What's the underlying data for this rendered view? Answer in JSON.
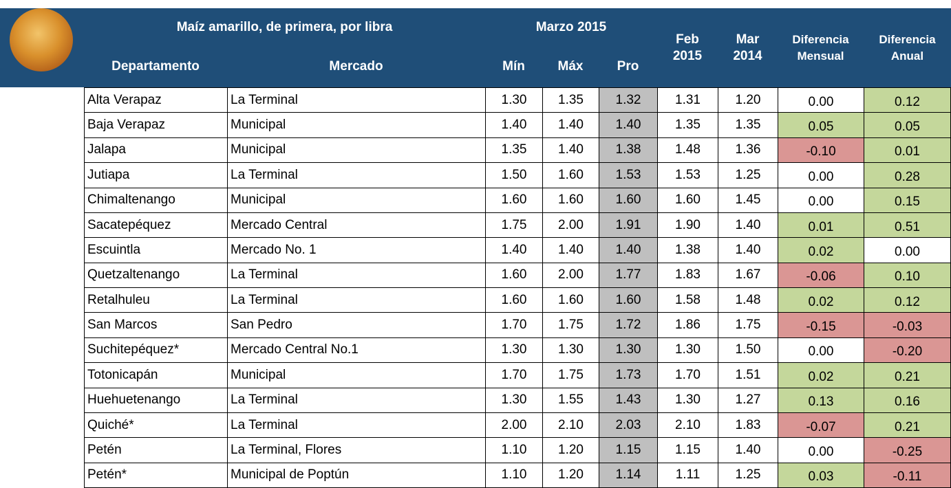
{
  "header": {
    "title": "Maíz amarillo, de primera, por libra",
    "period": "Marzo 2015",
    "columns": [
      "Departamento",
      "Mercado",
      "Mín",
      "Máx",
      "Pro"
    ],
    "feb": [
      "Feb",
      "2015"
    ],
    "mar": [
      "Mar",
      "2014"
    ],
    "dif_mensual": [
      "Diferencia",
      "Mensual"
    ],
    "dif_anual": [
      "Diferencia",
      "Anual"
    ]
  },
  "colors": {
    "header": "#1f4e78",
    "pro": "#bfbfbf",
    "positive": "#c4d79b",
    "negative": "#da9694"
  },
  "table": {
    "rows": [
      [
        "Alta Verapaz",
        "La Terminal",
        "1.30",
        "1.35",
        "1.32",
        "1.31",
        "1.20",
        "0.00",
        "0.12"
      ],
      [
        "Baja Verapaz",
        "Municipal",
        "1.40",
        "1.40",
        "1.40",
        "1.35",
        "1.35",
        "0.05",
        "0.05"
      ],
      [
        "Jalapa",
        "Municipal",
        "1.35",
        "1.40",
        "1.38",
        "1.48",
        "1.36",
        "-0.10",
        "0.01"
      ],
      [
        "Jutiapa",
        "La Terminal",
        "1.50",
        "1.60",
        "1.53",
        "1.53",
        "1.25",
        "0.00",
        "0.28"
      ],
      [
        "Chimaltenango",
        "Municipal",
        "1.60",
        "1.60",
        "1.60",
        "1.60",
        "1.45",
        "0.00",
        "0.15"
      ],
      [
        "Sacatepéquez",
        "Mercado Central",
        "1.75",
        "2.00",
        "1.91",
        "1.90",
        "1.40",
        "0.01",
        "0.51"
      ],
      [
        "Escuintla",
        "Mercado No. 1",
        "1.40",
        "1.40",
        "1.40",
        "1.38",
        "1.40",
        "0.02",
        "0.00"
      ],
      [
        "Quetzaltenango",
        "La Terminal",
        "1.60",
        "2.00",
        "1.77",
        "1.83",
        "1.67",
        "-0.06",
        "0.10"
      ],
      [
        "Retalhuleu",
        "La Terminal",
        "1.60",
        "1.60",
        "1.60",
        "1.58",
        "1.48",
        "0.02",
        "0.12"
      ],
      [
        "San Marcos",
        "San Pedro",
        "1.70",
        "1.75",
        "1.72",
        "1.86",
        "1.75",
        "-0.15",
        "-0.03"
      ],
      [
        "Suchitepéquez*",
        "Mercado Central No.1",
        "1.30",
        "1.30",
        "1.30",
        "1.30",
        "1.50",
        "0.00",
        "-0.20"
      ],
      [
        "Totonicapán",
        "Municipal",
        "1.70",
        "1.75",
        "1.73",
        "1.70",
        "1.51",
        "0.02",
        "0.21"
      ],
      [
        "Huehuetenango",
        "La Terminal",
        "1.30",
        "1.55",
        "1.43",
        "1.30",
        "1.27",
        "0.13",
        "0.16"
      ],
      [
        "Quiché*",
        "La Terminal",
        "2.00",
        "2.10",
        "2.03",
        "2.10",
        "1.83",
        "-0.07",
        "0.21"
      ],
      [
        "Petén",
        "La Terminal, Flores",
        "1.10",
        "1.20",
        "1.15",
        "1.15",
        "1.40",
        "0.00",
        "-0.25"
      ],
      [
        "Petén*",
        "Municipal de Poptún",
        "1.10",
        "1.20",
        "1.14",
        "1.11",
        "1.25",
        "0.03",
        "-0.11"
      ]
    ]
  }
}
